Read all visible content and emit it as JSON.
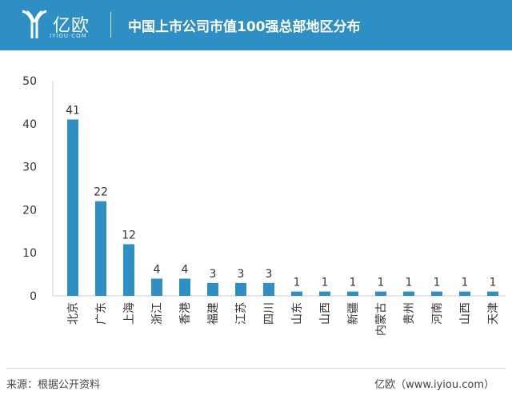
{
  "header": {
    "logo_text": "亿欧",
    "logo_sub": "IYIOU·COM",
    "title": "中国上市公司市值100强总部地区分布"
  },
  "colors": {
    "bar": "#2e8fc4",
    "header_bg": "#2e8fc4"
  },
  "chart_data": {
    "type": "bar",
    "title": "",
    "xlabel": "",
    "ylabel": "",
    "ylim": [
      0,
      50
    ],
    "yticks": [
      0,
      10,
      20,
      30,
      40,
      50
    ],
    "grid": false,
    "categories": [
      "北京",
      "广东",
      "上海",
      "浙江",
      "香港",
      "福建",
      "江苏",
      "四川",
      "山东",
      "山西",
      "新疆",
      "内蒙古",
      "贵州",
      "河南",
      "山西",
      "天津"
    ],
    "values": [
      41,
      22,
      12,
      4,
      4,
      3,
      3,
      3,
      1,
      1,
      1,
      1,
      1,
      1,
      1,
      1
    ]
  },
  "footer": {
    "source": "来源：根据公开资料",
    "credit": "亿欧（www.iyiou.com）"
  }
}
